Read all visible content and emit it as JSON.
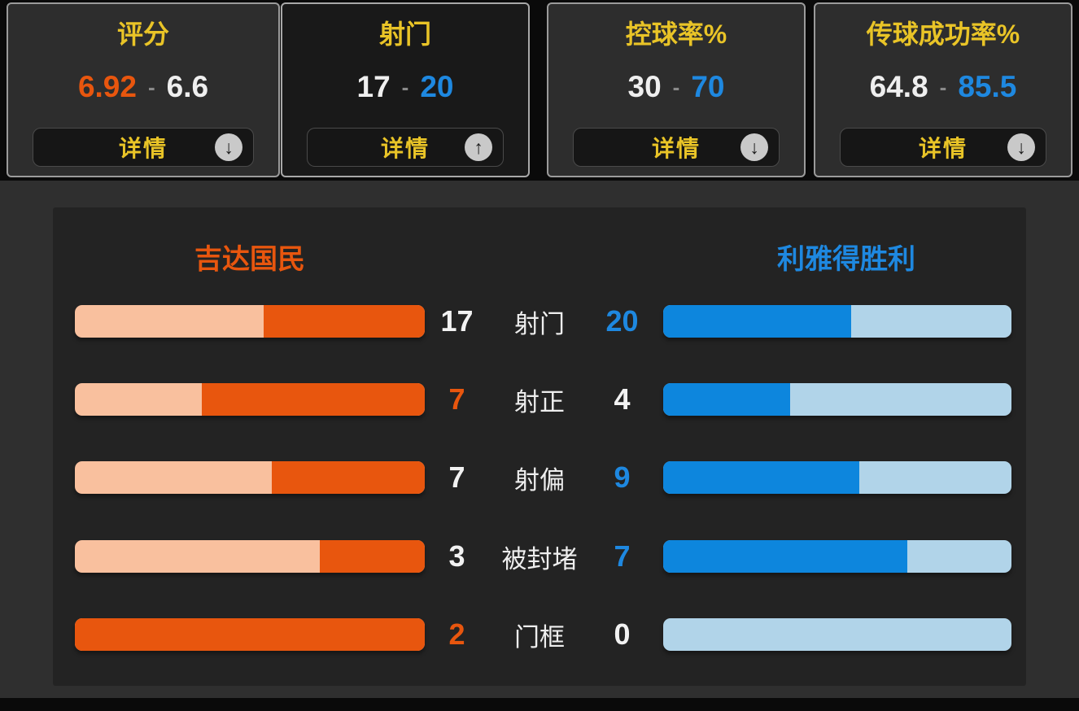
{
  "separator": "-",
  "icons": {
    "up_arrow": "↑",
    "down_arrow": "↓"
  },
  "colors": {
    "home_accent": "#e8560e",
    "home_bar_light": "#f9c09e",
    "away_accent": "#1e88e0",
    "away_bar": "#0d86dd",
    "away_bar_light": "#b1d4e9",
    "title_yellow": "#e9c427",
    "header_bg": "#0a0a0a",
    "panel_bg": "#232323"
  },
  "tabs": [
    {
      "title": "评分",
      "home": "6.92",
      "away": "6.6",
      "details_label": "详情",
      "expanded": false
    },
    {
      "title": "射门",
      "home": "17",
      "away": "20",
      "details_label": "详情",
      "expanded": true
    },
    {
      "title": "控球率%",
      "home": "30",
      "away": "70",
      "details_label": "详情",
      "expanded": false
    },
    {
      "title": "传球成功率%",
      "home": "64.8",
      "away": "85.5",
      "details_label": "详情",
      "expanded": false
    }
  ],
  "panel": {
    "home_team": "吉达国民",
    "away_team": "利雅得胜利",
    "rows": [
      {
        "label": "射门",
        "home": 17,
        "away": 20
      },
      {
        "label": "射正",
        "home": 7,
        "away": 4
      },
      {
        "label": "射偏",
        "home": 7,
        "away": 9
      },
      {
        "label": "被封堵",
        "home": 3,
        "away": 7
      },
      {
        "label": "门框",
        "home": 2,
        "away": 0
      }
    ]
  },
  "chart_data": {
    "type": "bar",
    "title": "射门 详情",
    "orientation": "horizontal-paired",
    "categories": [
      "射门",
      "射正",
      "射偏",
      "被封堵",
      "门框"
    ],
    "series": [
      {
        "name": "吉达国民",
        "values": [
          17,
          7,
          7,
          3,
          2
        ]
      },
      {
        "name": "利雅得胜利",
        "values": [
          20,
          4,
          9,
          7,
          0
        ]
      }
    ],
    "note": "filled segment length = value / (home+away) of that row"
  }
}
